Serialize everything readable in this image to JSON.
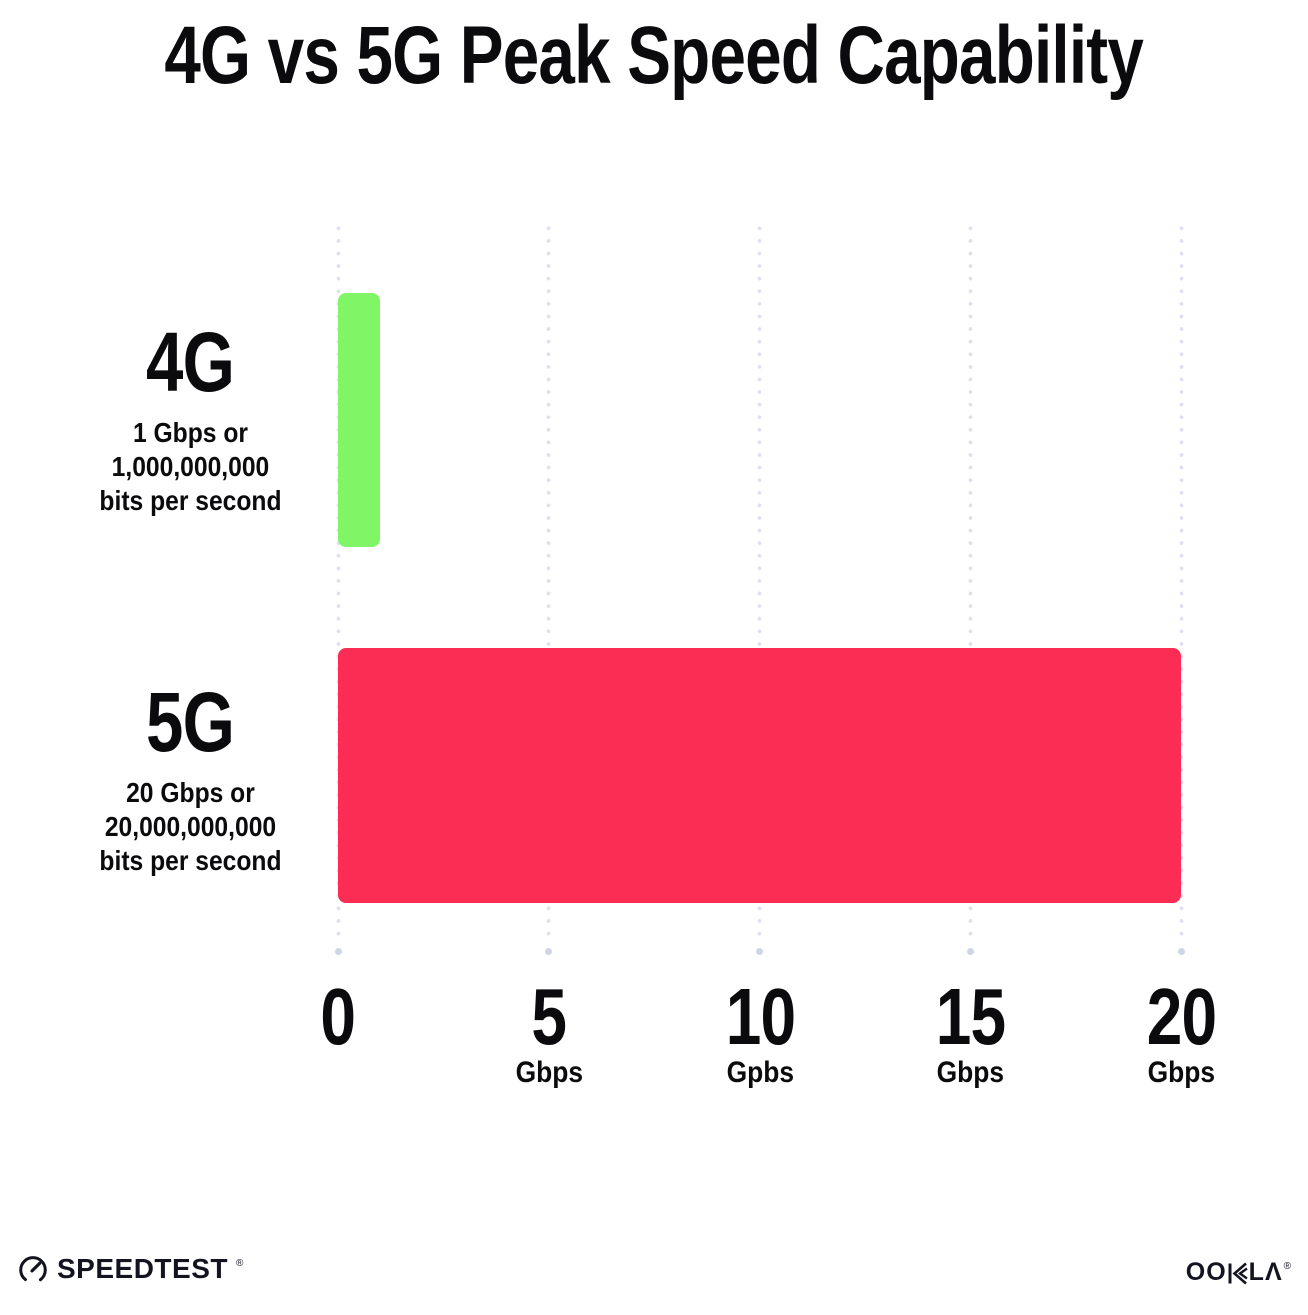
{
  "title": "4G vs 5G Peak Speed Capability",
  "chart_data": {
    "type": "bar",
    "orientation": "horizontal",
    "title": "4G vs 5G Peak Speed Capability",
    "categories": [
      "4G",
      "5G"
    ],
    "values": [
      1,
      20
    ],
    "unit": "Gbps",
    "category_sublabels": [
      [
        "1 Gbps or",
        "1,000,000,000",
        "bits per second"
      ],
      [
        "20 Gbps or",
        "20,000,000,000",
        "bits per second"
      ]
    ],
    "bar_colors": [
      "#80f666",
      "#fc2d55"
    ],
    "xlim": [
      0,
      20
    ],
    "xticks": [
      {
        "label": "0",
        "unit": ""
      },
      {
        "label": "5",
        "unit": "Gbps"
      },
      {
        "label": "10",
        "unit": "Gpbs"
      },
      {
        "label": "15",
        "unit": "Gbps"
      },
      {
        "label": "20",
        "unit": "Gbps"
      }
    ],
    "grid": "vertical-dotted",
    "legend": false
  },
  "colors": {
    "bar_4g": "#80f666",
    "bar_5g": "#fc2d55",
    "gridline_dot": "#dde1ee",
    "gridline_end_dot": "#cfd4e6",
    "text": "#0b0b0d",
    "background": "#ffffff"
  },
  "footer": {
    "speedtest": {
      "name": "SPEEDTEST",
      "trademark": "®"
    },
    "ookla": {
      "name": "OOKLA",
      "prefix": "OO",
      "suffix": "LΛ",
      "trademark": "®"
    }
  }
}
